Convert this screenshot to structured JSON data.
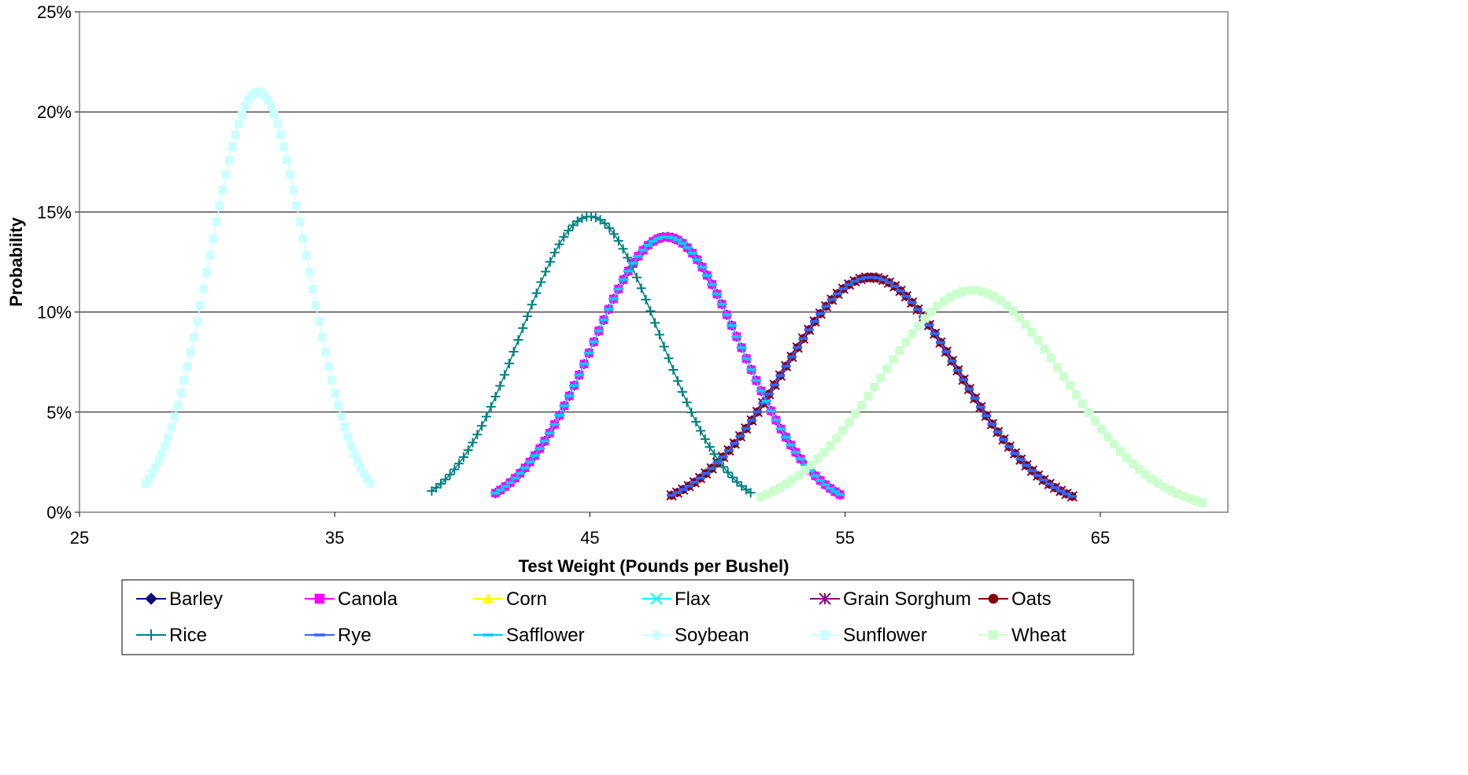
{
  "chart_data": {
    "type": "line",
    "title": "",
    "xlabel": "Test Weight (Pounds per Bushel)",
    "ylabel": "Probability",
    "xlim": [
      25,
      70
    ],
    "ylim": [
      0,
      0.25
    ],
    "xticks": [
      25,
      35,
      45,
      55,
      65
    ],
    "xtick_labels": [
      "25",
      "35",
      "45",
      "55",
      "65"
    ],
    "yticks": [
      0,
      0.05,
      0.1,
      0.15,
      0.2,
      0.25
    ],
    "ytick_labels": [
      "0%",
      "5%",
      "10%",
      "15%",
      "20%",
      "25%"
    ],
    "grid": "horizontal",
    "legend_position": "bottom",
    "series": [
      {
        "name": "Barley",
        "color": "#000080",
        "marker": "diamond",
        "mean": 48.0,
        "sd": 2.9,
        "x_min": 41.3,
        "x_max": 54.8
      },
      {
        "name": "Canola",
        "color": "#FF00FF",
        "marker": "square",
        "mean": 48.0,
        "sd": 2.9,
        "x_min": 41.3,
        "x_max": 54.8
      },
      {
        "name": "Corn",
        "color": "#FFFF00",
        "marker": "triangle",
        "mean": 56.0,
        "sd": 3.4,
        "x_min": 48.2,
        "x_max": 63.9
      },
      {
        "name": "Flax",
        "color": "#00FFFF",
        "marker": "x",
        "mean": 56.0,
        "sd": 3.4,
        "x_min": 48.2,
        "x_max": 63.9
      },
      {
        "name": "Grain Sorghum",
        "color": "#800080",
        "marker": "star",
        "mean": 56.0,
        "sd": 3.4,
        "x_min": 48.2,
        "x_max": 63.9
      },
      {
        "name": "Oats",
        "color": "#800000",
        "marker": "circle",
        "mean": 56.0,
        "sd": 3.4,
        "x_min": 48.2,
        "x_max": 63.9
      },
      {
        "name": "Rice",
        "color": "#008080",
        "marker": "plus",
        "mean": 45.0,
        "sd": 2.7,
        "x_min": 38.8,
        "x_max": 51.3
      },
      {
        "name": "Rye",
        "color": "#3366FF",
        "marker": "dash",
        "mean": 56.0,
        "sd": 3.4,
        "x_min": 48.2,
        "x_max": 63.9
      },
      {
        "name": "Safflower",
        "color": "#00CCFF",
        "marker": "dash",
        "mean": 48.0,
        "sd": 2.9,
        "x_min": 41.3,
        "x_max": 54.8
      },
      {
        "name": "Soybean",
        "color": "#CCFFFF",
        "marker": "diamond",
        "mean": 60.0,
        "sd": 3.6,
        "x_min": 51.7,
        "x_max": 69.0
      },
      {
        "name": "Sunflower",
        "color": "#CCFFFF",
        "marker": "square",
        "mean": 32.0,
        "sd": 1.9,
        "x_min": 27.6,
        "x_max": 36.4
      },
      {
        "name": "Wheat",
        "color": "#CCFFCC",
        "marker": "square",
        "mean": 60.0,
        "sd": 3.6,
        "x_min": 51.7,
        "x_max": 69.0
      }
    ]
  }
}
